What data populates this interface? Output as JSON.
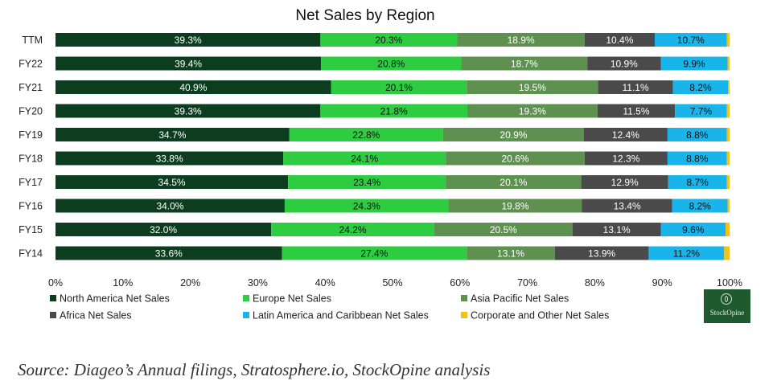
{
  "chart_data": {
    "type": "bar",
    "orientation": "horizontal",
    "stacked": true,
    "title": "Net Sales by Region",
    "categories": [
      "TTM",
      "FY22",
      "FY21",
      "FY20",
      "FY19",
      "FY18",
      "FY17",
      "FY16",
      "FY15",
      "FY14"
    ],
    "series": [
      {
        "name": "North America Net Sales",
        "color": "#0b3d1e",
        "values": [
          39.3,
          39.4,
          40.9,
          39.3,
          34.7,
          33.8,
          34.5,
          34.0,
          32.0,
          33.6
        ],
        "labels": [
          "39.3%",
          "39.4%",
          "40.9%",
          "39.3%",
          "34.7%",
          "33.8%",
          "34.5%",
          "34.0%",
          "32.0%",
          "33.6%"
        ]
      },
      {
        "name": "Europe Net Sales",
        "color": "#2ecc40",
        "values": [
          20.3,
          20.8,
          20.1,
          21.8,
          22.8,
          24.1,
          23.4,
          24.3,
          24.2,
          27.4
        ],
        "labels": [
          "20.3%",
          "20.8%",
          "20.1%",
          "21.8%",
          "22.8%",
          "24.1%",
          "23.4%",
          "24.3%",
          "24.2%",
          "27.4%"
        ]
      },
      {
        "name": "Asia Pacific Net Sales",
        "color": "#5e9150",
        "values": [
          18.9,
          18.7,
          19.5,
          19.3,
          20.9,
          20.6,
          20.1,
          19.8,
          20.5,
          13.1
        ],
        "labels": [
          "18.9%",
          "18.7%",
          "19.5%",
          "19.3%",
          "20.9%",
          "20.6%",
          "20.1%",
          "19.8%",
          "20.5%",
          "13.1%"
        ]
      },
      {
        "name": "Africa Net Sales",
        "color": "#4a4a4a",
        "values": [
          10.4,
          10.9,
          11.1,
          11.5,
          12.4,
          12.3,
          12.9,
          13.4,
          13.1,
          13.9
        ],
        "labels": [
          "10.4%",
          "10.9%",
          "11.1%",
          "11.5%",
          "12.4%",
          "12.3%",
          "12.9%",
          "13.4%",
          "13.1%",
          "13.9%"
        ]
      },
      {
        "name": "Latin America and Caribbean Net Sales",
        "color": "#18b4ea",
        "values": [
          10.7,
          9.9,
          8.2,
          7.7,
          8.8,
          8.8,
          8.7,
          8.2,
          9.6,
          11.2
        ],
        "labels": [
          "10.7%",
          "9.9%",
          "8.2%",
          "7.7%",
          "8.8%",
          "8.8%",
          "8.7%",
          "8.2%",
          "9.6%",
          "11.2%"
        ]
      },
      {
        "name": "Corporate and Other Net Sales",
        "color": "#f2c21b",
        "values": [
          0.4,
          0.3,
          0.2,
          0.4,
          0.4,
          0.4,
          0.4,
          0.3,
          0.6,
          0.8
        ],
        "labels": [
          "",
          "",
          "",
          "",
          "",
          "",
          "",
          "",
          "",
          ""
        ]
      }
    ],
    "xlim": [
      0,
      100
    ],
    "xticks": [
      "0%",
      "10%",
      "20%",
      "30%",
      "40%",
      "50%",
      "60%",
      "70%",
      "80%",
      "90%",
      "100%"
    ],
    "grid": false,
    "legend_position": "bottom"
  },
  "source_note": "Source: Diageo’s Annual filings, Stratosphere.io, StockOpine analysis",
  "logo_text": "StockOpine"
}
